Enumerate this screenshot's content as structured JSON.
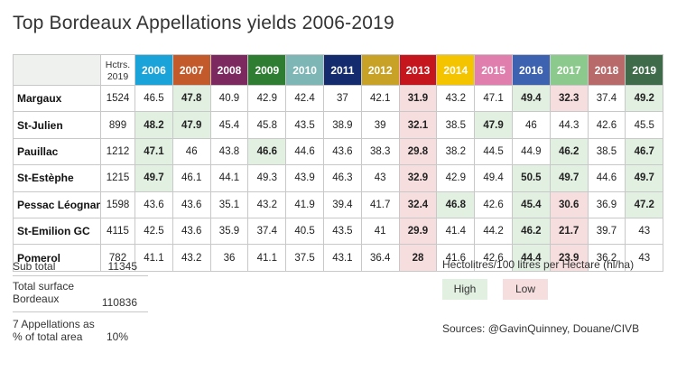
{
  "title": "Top Bordeaux Appellations yields 2006-2019",
  "colors": {
    "high_bg": "#e2f0e2",
    "low_bg": "#f7dede",
    "years": [
      "#1aa3d8",
      "#c25a2b",
      "#7c2960",
      "#2e7d32",
      "#7eb6b6",
      "#142c6e",
      "#c7a227",
      "#c4161c",
      "#f5c400",
      "#e07fae",
      "#3d62b0",
      "#8cc98c",
      "#b86a6a",
      "#3f6b4a"
    ]
  },
  "chart_data": {
    "type": "table",
    "title": "Top Bordeaux Appellations yields 2006-2019",
    "unit": "Hectolitres/100 litres per Hectare (hl/ha)",
    "hectares_label": "Hctrs. 2019",
    "years": [
      "2006",
      "2007",
      "2008",
      "2009",
      "2010",
      "2011",
      "2012",
      "2013",
      "2014",
      "2015",
      "2016",
      "2017",
      "2018",
      "2019"
    ],
    "rows": [
      {
        "name": "Margaux",
        "hectares": "1524",
        "values": [
          "46.5",
          "47.8",
          "40.9",
          "42.9",
          "42.4",
          "37",
          "42.1",
          "31.9",
          "43.2",
          "47.1",
          "49.4",
          "32.3",
          "37.4",
          "49.2"
        ],
        "high": [
          1,
          10,
          13
        ],
        "low": [
          7,
          11
        ]
      },
      {
        "name": "St-Julien",
        "hectares": "899",
        "values": [
          "48.2",
          "47.9",
          "45.4",
          "45.8",
          "43.5",
          "38.9",
          "39",
          "32.1",
          "38.5",
          "47.9",
          "46",
          "44.3",
          "42.6",
          "45.5"
        ],
        "high": [
          0,
          1,
          9
        ],
        "low": [
          7
        ]
      },
      {
        "name": "Pauillac",
        "hectares": "1212",
        "values": [
          "47.1",
          "46",
          "43.8",
          "46.6",
          "44.6",
          "43.6",
          "38.3",
          "29.8",
          "38.2",
          "44.5",
          "44.9",
          "46.2",
          "38.5",
          "46.7"
        ],
        "high": [
          0,
          3,
          11,
          13
        ],
        "low": [
          7
        ]
      },
      {
        "name": "St-Estèphe",
        "hectares": "1215",
        "values": [
          "49.7",
          "46.1",
          "44.1",
          "49.3",
          "43.9",
          "46.3",
          "43",
          "32.9",
          "42.9",
          "49.4",
          "50.5",
          "49.7",
          "44.6",
          "49.7"
        ],
        "high": [
          0,
          10,
          11,
          13
        ],
        "low": [
          7
        ]
      },
      {
        "name": "Pessac Léognan",
        "hectares": "1598",
        "values": [
          "43.6",
          "43.6",
          "35.1",
          "43.2",
          "41.9",
          "39.4",
          "41.7",
          "32.4",
          "46.8",
          "42.6",
          "45.4",
          "30.6",
          "36.9",
          "47.2"
        ],
        "high": [
          8,
          10,
          13
        ],
        "low": [
          7,
          11
        ]
      },
      {
        "name": "St-Emilion GC",
        "hectares": "4115",
        "values": [
          "42.5",
          "43.6",
          "35.9",
          "37.4",
          "40.5",
          "43.5",
          "41",
          "29.9",
          "41.4",
          "44.2",
          "46.2",
          "21.7",
          "39.7",
          "43"
        ],
        "high": [
          10
        ],
        "low": [
          7,
          11
        ]
      },
      {
        "name": "Pomerol",
        "hectares": "782",
        "values": [
          "41.1",
          "43.2",
          "36",
          "41.1",
          "37.5",
          "43.1",
          "36.4",
          "28",
          "41.6",
          "42.6",
          "44.4",
          "23.9",
          "36.2",
          "43"
        ],
        "high": [
          10
        ],
        "low": [
          7,
          11
        ]
      }
    ]
  },
  "summary": {
    "subtotal_label": "Sub total",
    "subtotal_value": "11345",
    "total_label_1": "Total surface",
    "total_label_2": "Bordeaux",
    "total_value": "110836",
    "pct_label_1": "7 Appellations as",
    "pct_label_2": "% of total area",
    "pct_value": "10%"
  },
  "legend": {
    "title": "Hectolitres/100 litres per Hectare (hl/ha)",
    "high": "High",
    "low": "Low"
  },
  "sources": "Sources: @GavinQuinney, Douane/CIVB"
}
